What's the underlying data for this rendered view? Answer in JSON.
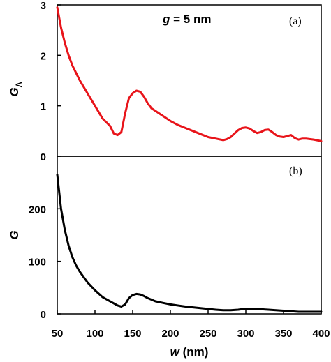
{
  "chart_data": [
    {
      "type": "line",
      "panel_label": "(a)",
      "annotation": {
        "var": "g",
        "text": " = 5 nm"
      },
      "xlabel": "",
      "ylabel": {
        "main": "G",
        "sub": "Λ"
      },
      "xlim": [
        50,
        400
      ],
      "ylim": [
        0,
        3
      ],
      "yticks": [
        "0",
        "1",
        "2",
        "3"
      ],
      "grid": false,
      "series": [
        {
          "color": "#e8141a",
          "x": [
            50,
            55,
            60,
            65,
            70,
            75,
            80,
            90,
            100,
            110,
            120,
            125,
            130,
            135,
            140,
            145,
            150,
            155,
            160,
            165,
            170,
            175,
            180,
            190,
            200,
            210,
            220,
            230,
            240,
            250,
            260,
            270,
            275,
            280,
            285,
            290,
            295,
            300,
            305,
            310,
            315,
            320,
            325,
            330,
            335,
            340,
            345,
            350,
            355,
            360,
            365,
            370,
            375,
            380,
            390,
            400
          ],
          "y": [
            2.95,
            2.55,
            2.25,
            2.0,
            1.8,
            1.65,
            1.5,
            1.25,
            1.0,
            0.75,
            0.6,
            0.45,
            0.42,
            0.48,
            0.85,
            1.15,
            1.25,
            1.3,
            1.28,
            1.18,
            1.05,
            0.95,
            0.9,
            0.8,
            0.7,
            0.62,
            0.56,
            0.5,
            0.44,
            0.38,
            0.35,
            0.32,
            0.34,
            0.38,
            0.45,
            0.52,
            0.56,
            0.57,
            0.55,
            0.5,
            0.46,
            0.48,
            0.52,
            0.53,
            0.48,
            0.42,
            0.39,
            0.38,
            0.4,
            0.42,
            0.36,
            0.33,
            0.35,
            0.35,
            0.33,
            0.3
          ]
        }
      ]
    },
    {
      "type": "line",
      "panel_label": "(b)",
      "xlabel": {
        "var": "w",
        "text": " (nm)"
      },
      "ylabel": "G",
      "xlim": [
        50,
        400
      ],
      "ylim": [
        0,
        300
      ],
      "xticks": [
        "50",
        "100",
        "150",
        "200",
        "250",
        "300",
        "350",
        "400"
      ],
      "yticks": [
        "0",
        "100",
        "200"
      ],
      "grid": false,
      "series": [
        {
          "color": "#000000",
          "x": [
            50,
            55,
            60,
            65,
            70,
            75,
            80,
            90,
            100,
            110,
            120,
            130,
            135,
            140,
            145,
            150,
            155,
            160,
            165,
            170,
            180,
            190,
            200,
            220,
            240,
            260,
            270,
            280,
            290,
            300,
            310,
            320,
            330,
            340,
            350,
            360,
            370,
            380,
            390,
            400
          ],
          "y": [
            265,
            200,
            160,
            130,
            108,
            92,
            80,
            60,
            45,
            32,
            24,
            16,
            14,
            18,
            30,
            36,
            38,
            37,
            34,
            30,
            24,
            21,
            18,
            14,
            11,
            8,
            7,
            7,
            8,
            10,
            10,
            9,
            8,
            7,
            6,
            5,
            4,
            4,
            4,
            4
          ]
        }
      ]
    }
  ]
}
